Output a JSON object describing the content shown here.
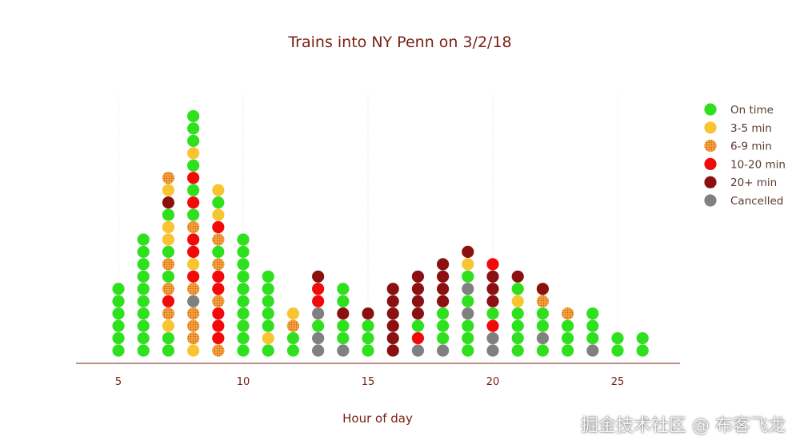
{
  "chart_data": {
    "type": "scatter",
    "title": "Trains into NY Penn on 3/2/18",
    "xlabel": "Hour of day",
    "ylabel": "",
    "xlim": [
      3.3,
      27.5
    ],
    "xticks": [
      5,
      10,
      15,
      20,
      25
    ],
    "grid": "vertical dotted",
    "legend_position": "top-right",
    "categories": [
      "On time",
      "3-5 min",
      "6-9 min",
      "10-20 min",
      "20+ min",
      "Cancelled"
    ],
    "colors": {
      "On time": "#2fe01e",
      "3-5 min": "#f9c431",
      "6-9 min": "#f3a338",
      "10-20 min": "#f20a0a",
      "20+ min": "#8b1111",
      "Cancelled": "#808080"
    },
    "columns": [
      {
        "x": 5,
        "stack": [
          "On time",
          "On time",
          "On time",
          "On time",
          "On time",
          "On time"
        ]
      },
      {
        "x": 6,
        "stack": [
          "On time",
          "On time",
          "On time",
          "On time",
          "On time",
          "On time",
          "On time",
          "On time",
          "On time",
          "On time"
        ]
      },
      {
        "x": 7,
        "stack": [
          "On time",
          "On time",
          "3-5 min",
          "6-9 min",
          "10-20 min",
          "6-9 min",
          "On time",
          "6-9 min",
          "On time",
          "3-5 min",
          "3-5 min",
          "On time",
          "20+ min",
          "3-5 min",
          "6-9 min"
        ]
      },
      {
        "x": 8,
        "stack": [
          "3-5 min",
          "6-9 min",
          "6-9 min",
          "6-9 min",
          "Cancelled",
          "6-9 min",
          "10-20 min",
          "3-5 min",
          "10-20 min",
          "10-20 min",
          "6-9 min",
          "On time",
          "10-20 min",
          "On time",
          "10-20 min",
          "On time",
          "3-5 min",
          "On time",
          "On time",
          "On time"
        ]
      },
      {
        "x": 9,
        "stack": [
          "6-9 min",
          "10-20 min",
          "10-20 min",
          "10-20 min",
          "6-9 min",
          "10-20 min",
          "10-20 min",
          "6-9 min",
          "On time",
          "6-9 min",
          "10-20 min",
          "3-5 min",
          "On time",
          "3-5 min"
        ]
      },
      {
        "x": 10,
        "stack": [
          "On time",
          "On time",
          "On time",
          "On time",
          "On time",
          "On time",
          "On time",
          "On time",
          "On time",
          "On time"
        ]
      },
      {
        "x": 11,
        "stack": [
          "On time",
          "3-5 min",
          "On time",
          "On time",
          "On time",
          "On time",
          "On time"
        ]
      },
      {
        "x": 12,
        "stack": [
          "On time",
          "On time",
          "6-9 min",
          "3-5 min"
        ]
      },
      {
        "x": 13,
        "stack": [
          "Cancelled",
          "Cancelled",
          "On time",
          "Cancelled",
          "10-20 min",
          "10-20 min",
          "20+ min"
        ]
      },
      {
        "x": 14,
        "stack": [
          "Cancelled",
          "On time",
          "On time",
          "20+ min",
          "On time",
          "On time"
        ]
      },
      {
        "x": 15,
        "stack": [
          "On time",
          "On time",
          "On time",
          "20+ min"
        ]
      },
      {
        "x": 16,
        "stack": [
          "20+ min",
          "20+ min",
          "20+ min",
          "20+ min",
          "20+ min",
          "20+ min"
        ]
      },
      {
        "x": 17,
        "stack": [
          "Cancelled",
          "10-20 min",
          "On time",
          "20+ min",
          "20+ min",
          "20+ min",
          "20+ min"
        ]
      },
      {
        "x": 18,
        "stack": [
          "Cancelled",
          "On time",
          "On time",
          "On time",
          "20+ min",
          "20+ min",
          "20+ min",
          "20+ min"
        ]
      },
      {
        "x": 19,
        "stack": [
          "On time",
          "On time",
          "On time",
          "Cancelled",
          "On time",
          "Cancelled",
          "On time",
          "3-5 min",
          "20+ min"
        ]
      },
      {
        "x": 20,
        "stack": [
          "Cancelled",
          "Cancelled",
          "10-20 min",
          "On time",
          "20+ min",
          "20+ min",
          "20+ min",
          "10-20 min"
        ]
      },
      {
        "x": 21,
        "stack": [
          "On time",
          "On time",
          "On time",
          "On time",
          "3-5 min",
          "On time",
          "20+ min"
        ]
      },
      {
        "x": 22,
        "stack": [
          "On time",
          "Cancelled",
          "On time",
          "On time",
          "6-9 min",
          "20+ min"
        ]
      },
      {
        "x": 23,
        "stack": [
          "On time",
          "On time",
          "On time",
          "6-9 min"
        ]
      },
      {
        "x": 24,
        "stack": [
          "Cancelled",
          "On time",
          "On time",
          "On time"
        ]
      },
      {
        "x": 25,
        "stack": [
          "On time",
          "On time"
        ]
      },
      {
        "x": 26,
        "stack": [
          "On time",
          "On time"
        ]
      }
    ]
  },
  "watermark": "掘金技术社区 @ 布客飞龙"
}
